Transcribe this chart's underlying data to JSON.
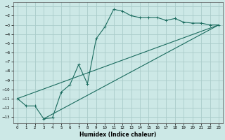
{
  "title": "",
  "xlabel": "Humidex (Indice chaleur)",
  "xlim": [
    -0.5,
    23.5
  ],
  "ylim": [
    -13.7,
    -0.5
  ],
  "yticks": [
    -1,
    -2,
    -3,
    -4,
    -5,
    -6,
    -7,
    -8,
    -9,
    -10,
    -11,
    -12,
    -13
  ],
  "xticks": [
    0,
    1,
    2,
    3,
    4,
    5,
    6,
    7,
    8,
    9,
    10,
    11,
    12,
    13,
    14,
    15,
    16,
    17,
    18,
    19,
    20,
    21,
    22,
    23
  ],
  "bg_color": "#cce8e6",
  "grid_color": "#aaccca",
  "line_color": "#1a6b5e",
  "line1_x": [
    0,
    1,
    2,
    3,
    4,
    5,
    6,
    7,
    8,
    9,
    10,
    11,
    12,
    13,
    14,
    15,
    16,
    17,
    18,
    19,
    20,
    21,
    22,
    23
  ],
  "line1_y": [
    -11.0,
    -11.8,
    -11.8,
    -13.2,
    -13.1,
    -10.3,
    -9.5,
    -7.3,
    -9.4,
    -4.5,
    -3.2,
    -1.3,
    -1.5,
    -2.0,
    -2.2,
    -2.2,
    -2.2,
    -2.5,
    -2.3,
    -2.7,
    -2.8,
    -2.8,
    -3.0,
    -3.0
  ],
  "line2_x": [
    0,
    23
  ],
  "line2_y": [
    -11.0,
    -3.0
  ],
  "line3_x": [
    3,
    23
  ],
  "line3_y": [
    -13.2,
    -3.0
  ]
}
